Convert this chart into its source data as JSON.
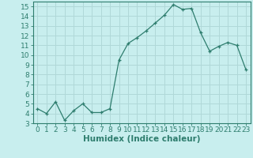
{
  "x": [
    0,
    1,
    2,
    3,
    4,
    5,
    6,
    7,
    8,
    9,
    10,
    11,
    12,
    13,
    14,
    15,
    16,
    17,
    18,
    19,
    20,
    21,
    22,
    23
  ],
  "y": [
    4.5,
    4.0,
    5.2,
    3.3,
    4.3,
    5.0,
    4.1,
    4.1,
    4.5,
    9.5,
    11.2,
    11.8,
    12.5,
    13.3,
    14.1,
    15.2,
    14.7,
    14.8,
    12.3,
    10.4,
    10.9,
    11.3,
    11.0,
    8.5
  ],
  "line_color": "#2e7d6e",
  "marker": "+",
  "bg_color": "#c8eeee",
  "grid_color": "#b0d8d8",
  "xlabel": "Humidex (Indice chaleur)",
  "xlim": [
    -0.5,
    23.5
  ],
  "ylim": [
    3,
    15.5
  ],
  "yticks": [
    3,
    4,
    5,
    6,
    7,
    8,
    9,
    10,
    11,
    12,
    13,
    14,
    15
  ],
  "xticks": [
    0,
    1,
    2,
    3,
    4,
    5,
    6,
    7,
    8,
    9,
    10,
    11,
    12,
    13,
    14,
    15,
    16,
    17,
    18,
    19,
    20,
    21,
    22,
    23
  ],
  "tick_color": "#2e7d6e",
  "label_color": "#2e7d6e",
  "axis_color": "#2e7d6e",
  "font_size": 6.5,
  "xlabel_fontsize": 7.5
}
